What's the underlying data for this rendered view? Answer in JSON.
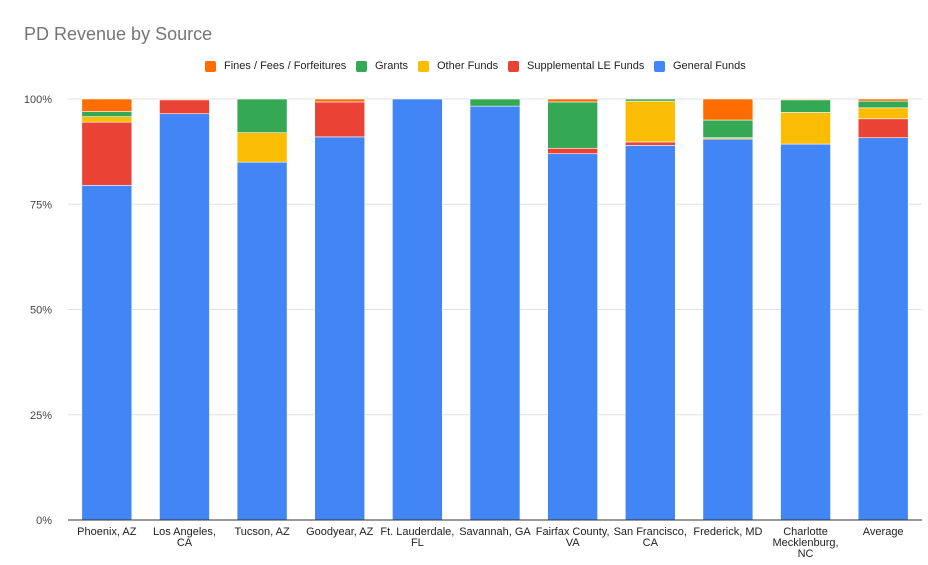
{
  "chart_data": {
    "type": "bar",
    "stacked": "percent",
    "title": "PD Revenue by Source",
    "xlabel": "",
    "ylabel": "",
    "ylim": [
      0,
      100
    ],
    "y_ticks": [
      "0%",
      "25%",
      "50%",
      "75%",
      "100%"
    ],
    "y_tick_values": [
      0,
      25,
      50,
      75,
      100
    ],
    "grid": true,
    "legend_position": "top",
    "categories": [
      "Phoenix, AZ",
      "Los Angeles, CA",
      "Tucson, AZ",
      "Goodyear, AZ",
      "Ft. Lauderdale, FL",
      "Savannah, GA",
      "Fairfax County, VA",
      "San Francisco, CA",
      "Frederick, MD",
      "Charlotte Mecklenburg, NC",
      "Average"
    ],
    "category_lines": [
      [
        "Phoenix, AZ"
      ],
      [
        "Los Angeles,",
        "CA"
      ],
      [
        "Tucson, AZ"
      ],
      [
        "Goodyear, AZ"
      ],
      [
        "Ft. Lauderdale,",
        "FL"
      ],
      [
        "Savannah, GA"
      ],
      [
        "Fairfax County,",
        "VA"
      ],
      [
        "San Francisco,",
        "CA"
      ],
      [
        "Frederick, MD"
      ],
      [
        "Charlotte",
        "Mecklenburg,",
        "NC"
      ],
      [
        "Average"
      ]
    ],
    "legend_order": [
      "Fines / Fees / Forfeitures",
      "Grants",
      "Other Funds",
      "Supplemental LE Funds",
      "General Funds"
    ],
    "series": [
      {
        "name": "General Funds",
        "color": "#4285F4",
        "values": [
          79.5,
          96.5,
          85.0,
          91.0,
          100.0,
          98.3,
          87.0,
          89.0,
          90.5,
          89.3,
          90.8
        ]
      },
      {
        "name": "Supplemental LE Funds",
        "color": "#EA4335",
        "values": [
          15.0,
          3.3,
          0,
          8.3,
          0,
          0,
          1.3,
          0.8,
          0,
          0,
          4.5
        ]
      },
      {
        "name": "Other Funds",
        "color": "#FBBC04",
        "values": [
          1.3,
          0,
          7.0,
          0,
          0,
          0,
          0,
          9.7,
          0.3,
          7.5,
          2.6
        ]
      },
      {
        "name": "Grants",
        "color": "#34A853",
        "values": [
          1.2,
          0,
          8.0,
          0,
          0,
          1.7,
          11.0,
          0.5,
          4.2,
          3.0,
          1.6
        ]
      },
      {
        "name": "Fines / Fees / Forfeitures",
        "color": "#FF6D01",
        "values": [
          3.0,
          0.2,
          0,
          0.7,
          0,
          0,
          0.7,
          0,
          5.0,
          0.2,
          0.5
        ]
      }
    ]
  }
}
